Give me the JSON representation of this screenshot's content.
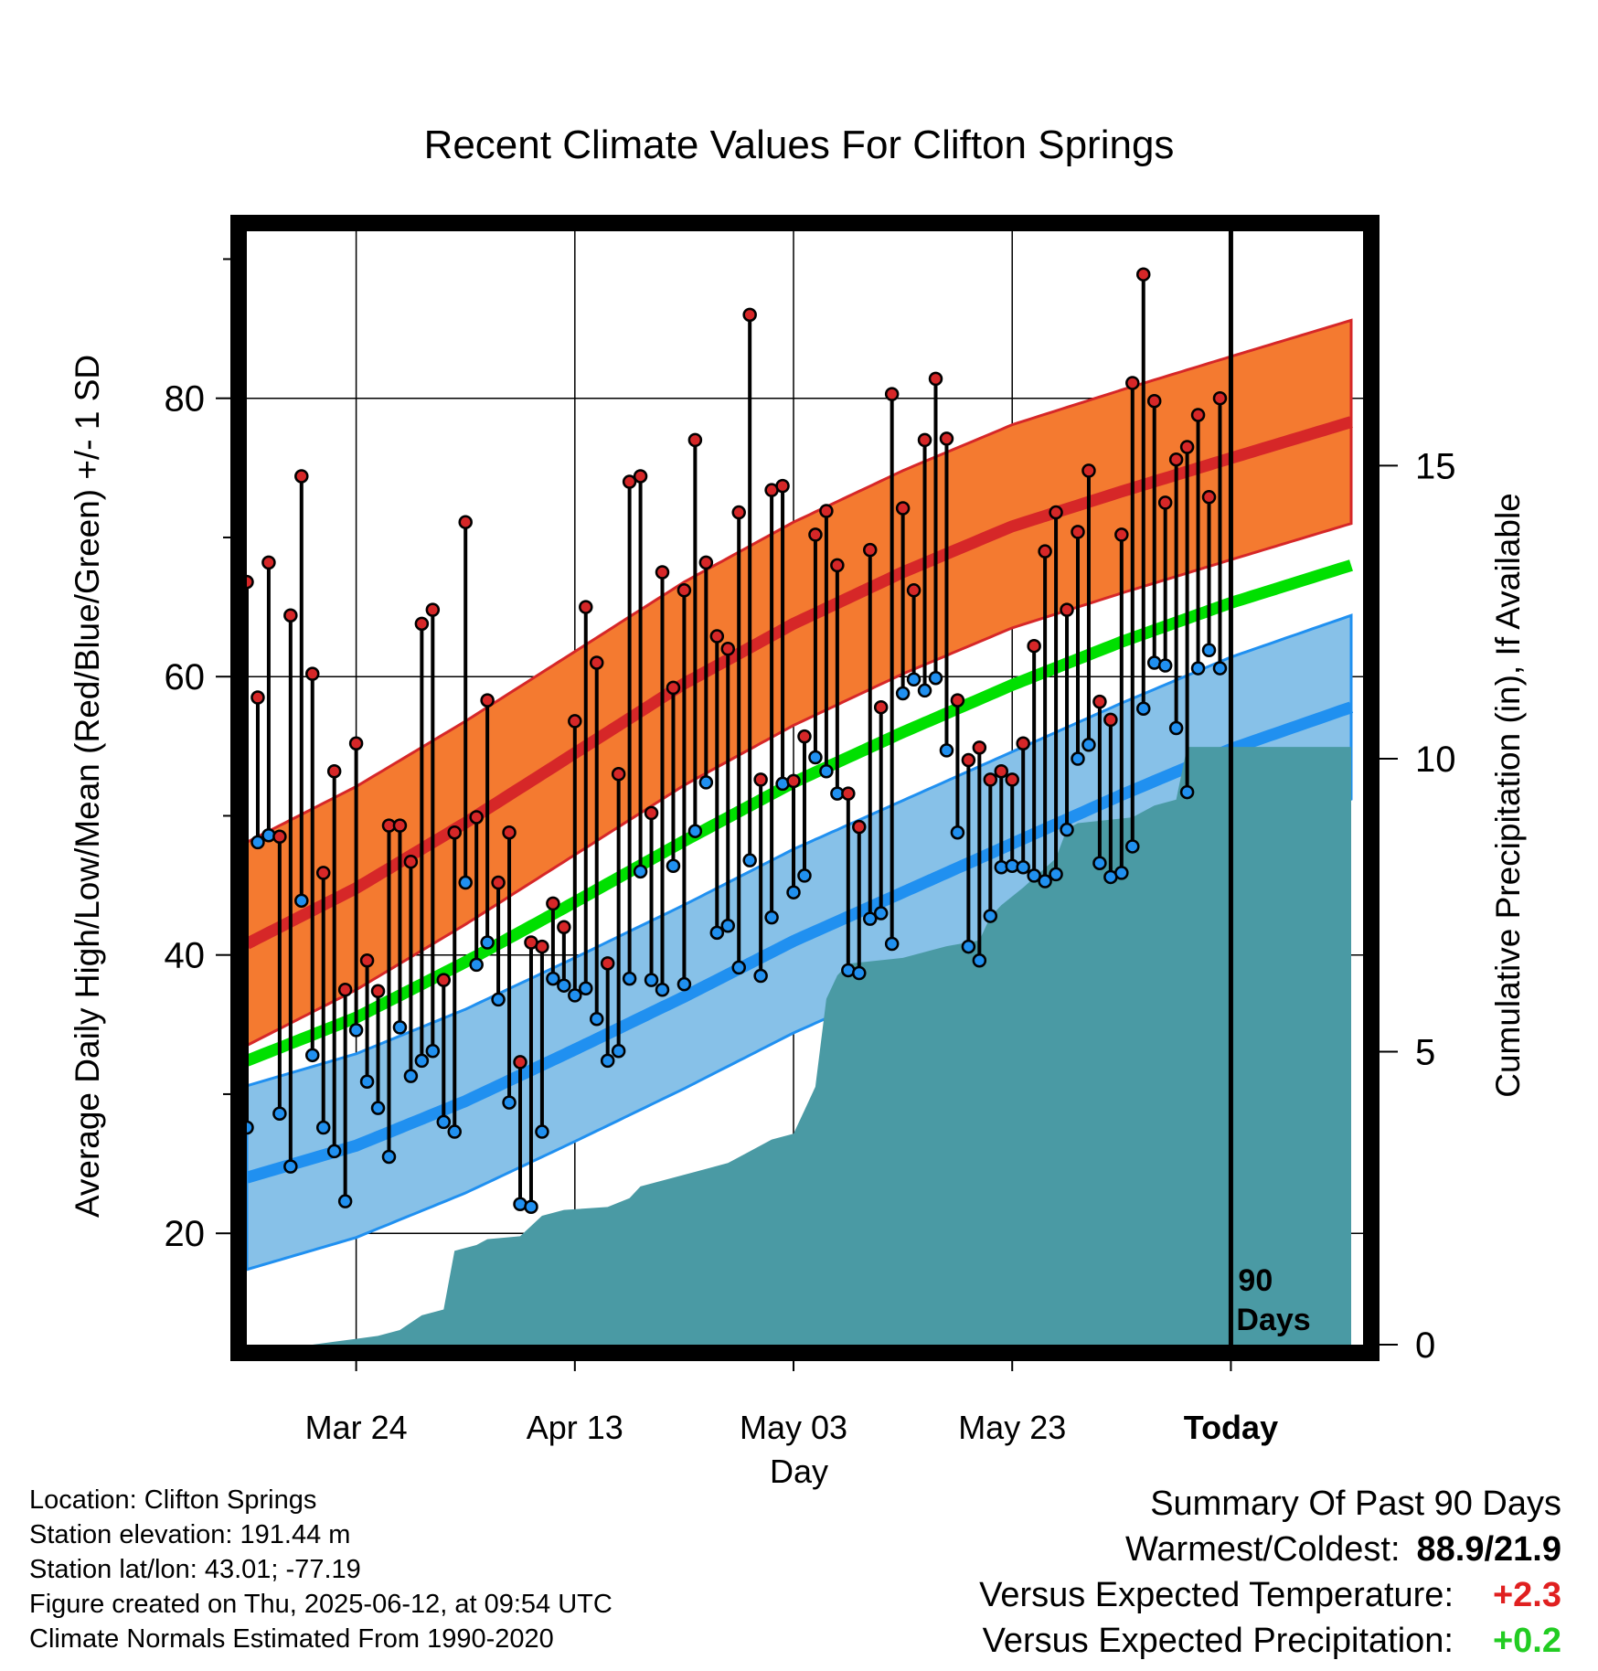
{
  "title": "Recent Climate Values For Clifton Springs",
  "xlabel": "Day",
  "ylabel_left": "Average Daily High/Low/Mean (Red/Blue/Green) +/- 1 SD",
  "ylabel_right": "Cumulative Precipitation (in), If Available",
  "today_marker_label": [
    "90",
    "Days"
  ],
  "info": {
    "location": "Location: Clifton Springs",
    "elevation": "Station elevation: 191.44 m",
    "latlon": "Station lat/lon: 43.01; -77.19",
    "created": "Figure created on Thu, 2025-06-12, at 09:54 UTC",
    "normals": "Climate Normals Estimated From 1990-2020"
  },
  "summary": {
    "heading": "Summary Of Past 90 Days",
    "warm_cold_label": "Warmest/Coldest:",
    "warm_cold_value": "88.9/21.9",
    "temp_label": "Versus Expected Temperature:",
    "temp_value": "+2.3",
    "temp_color": "#e02020",
    "precip_label": "Versus Expected Precipitation:",
    "precip_value": "+0.2",
    "precip_color": "#22cc22"
  },
  "colors": {
    "high_band": "#f47a30",
    "high_line": "#d62728",
    "low_band": "#87c1e8",
    "low_line": "#2090f0",
    "mean_line": "#00e000",
    "precip_fill": "#4a9aa4",
    "high_dot": "#d62728",
    "low_dot": "#2090f0"
  },
  "chart_data": {
    "type": "line",
    "x_range": [
      0,
      101
    ],
    "x_ticks": [
      {
        "day": 10,
        "label": "Mar 24"
      },
      {
        "day": 30,
        "label": "Apr 13"
      },
      {
        "day": 50,
        "label": "May 03"
      },
      {
        "day": 70,
        "label": "May 23"
      },
      {
        "day": 90,
        "label": "Today"
      }
    ],
    "today_day": 90,
    "y_left": {
      "range": [
        12,
        92
      ],
      "ticks": [
        20,
        40,
        60,
        80
      ],
      "minor_ticks": [
        30,
        50,
        70,
        90
      ]
    },
    "y_right": {
      "range": [
        0,
        19
      ],
      "ticks": [
        0,
        5,
        10,
        15
      ]
    },
    "normal_high": {
      "knots": [
        [
          0,
          40.8
        ],
        [
          10,
          44.8
        ],
        [
          20,
          49.5
        ],
        [
          30,
          54.5
        ],
        [
          40,
          59.5
        ],
        [
          50,
          63.8
        ],
        [
          60,
          67.5
        ],
        [
          70,
          70.8
        ],
        [
          80,
          73.3
        ],
        [
          90,
          75.7
        ],
        [
          101,
          78.3
        ]
      ],
      "sd": 7.3
    },
    "normal_low": {
      "knots": [
        [
          0,
          24.0
        ],
        [
          10,
          26.3
        ],
        [
          20,
          29.5
        ],
        [
          30,
          33.2
        ],
        [
          40,
          37.0
        ],
        [
          50,
          41.0
        ],
        [
          60,
          44.5
        ],
        [
          70,
          48.0
        ],
        [
          80,
          51.5
        ],
        [
          90,
          54.8
        ],
        [
          101,
          57.8
        ]
      ],
      "sd": 6.6
    },
    "normal_mean": {
      "knots": [
        [
          0,
          32.4
        ],
        [
          10,
          35.5
        ],
        [
          20,
          39.5
        ],
        [
          30,
          43.8
        ],
        [
          40,
          48.2
        ],
        [
          50,
          52.4
        ],
        [
          60,
          56.0
        ],
        [
          70,
          59.4
        ],
        [
          80,
          62.5
        ],
        [
          90,
          65.3
        ],
        [
          101,
          68.0
        ]
      ]
    },
    "daily": {
      "start_day": 0,
      "high": [
        66.8,
        58.5,
        68.2,
        48.5,
        64.4,
        74.4,
        60.2,
        45.9,
        53.2,
        37.5,
        55.2,
        39.6,
        37.4,
        49.3,
        49.3,
        46.7,
        63.8,
        64.8,
        38.2,
        48.8,
        71.1,
        49.9,
        58.3,
        45.2,
        48.8,
        32.3,
        40.9,
        40.6,
        43.7,
        42.0,
        56.8,
        65.0,
        61.0,
        39.4,
        53.0,
        74.0,
        74.4,
        50.2,
        67.5,
        59.2,
        66.2,
        77.0,
        68.2,
        62.9,
        62.0,
        71.8,
        86.0,
        52.6,
        73.4,
        73.7,
        52.5,
        55.7,
        70.2,
        71.9,
        68.0,
        51.6,
        49.2,
        69.1,
        57.8,
        80.3,
        72.1,
        66.2,
        77.0,
        81.4,
        77.1,
        58.3,
        54.0,
        54.9,
        52.6,
        53.2,
        52.6,
        55.2,
        62.2,
        69.0,
        71.8,
        64.8,
        70.4,
        74.8,
        58.2,
        56.9,
        70.2,
        81.1,
        88.9,
        79.8,
        72.5,
        75.6,
        76.5,
        78.8,
        72.9,
        80.0
      ],
      "low": [
        27.6,
        48.1,
        48.6,
        28.6,
        24.8,
        43.9,
        32.8,
        27.6,
        25.9,
        22.3,
        34.6,
        30.9,
        29.0,
        25.5,
        34.8,
        31.3,
        32.4,
        33.1,
        28.0,
        27.3,
        45.2,
        39.3,
        40.9,
        36.8,
        29.4,
        22.1,
        21.9,
        27.3,
        38.3,
        37.8,
        37.1,
        37.6,
        35.4,
        32.4,
        33.1,
        38.3,
        46.0,
        38.2,
        37.5,
        46.4,
        37.9,
        48.9,
        52.4,
        41.6,
        42.1,
        39.1,
        46.8,
        38.5,
        42.7,
        52.3,
        44.5,
        45.7,
        54.2,
        53.2,
        51.6,
        38.9,
        38.7,
        42.6,
        43.0,
        40.8,
        58.8,
        59.8,
        59.0,
        59.9,
        54.7,
        48.8,
        40.6,
        39.6,
        42.8,
        46.3,
        46.4,
        46.3,
        45.7,
        45.3,
        45.8,
        49.0,
        54.1,
        55.1,
        46.6,
        45.6,
        45.9,
        47.8,
        57.7,
        61.0,
        60.8,
        56.3,
        51.7,
        60.6,
        61.9,
        60.6
      ]
    },
    "cumulative_precip": [
      [
        0,
        0
      ],
      [
        6,
        0
      ],
      [
        8,
        0.05
      ],
      [
        10,
        0.1
      ],
      [
        12,
        0.15
      ],
      [
        14,
        0.25
      ],
      [
        16,
        0.5
      ],
      [
        18,
        0.6
      ],
      [
        19,
        1.6
      ],
      [
        21,
        1.7
      ],
      [
        22,
        1.8
      ],
      [
        25,
        1.85
      ],
      [
        27,
        2.2
      ],
      [
        29,
        2.3
      ],
      [
        33,
        2.35
      ],
      [
        35,
        2.5
      ],
      [
        36,
        2.7
      ],
      [
        38,
        2.8
      ],
      [
        40,
        2.9
      ],
      [
        42,
        3.0
      ],
      [
        44,
        3.1
      ],
      [
        46,
        3.3
      ],
      [
        48,
        3.5
      ],
      [
        50,
        3.6
      ],
      [
        51,
        4.0
      ],
      [
        52,
        4.4
      ],
      [
        53,
        5.9
      ],
      [
        54,
        6.3
      ],
      [
        55,
        6.5
      ],
      [
        60,
        6.6
      ],
      [
        62,
        6.7
      ],
      [
        64,
        6.8
      ],
      [
        67,
        6.9
      ],
      [
        68,
        7.3
      ],
      [
        69,
        7.5
      ],
      [
        71,
        7.8
      ],
      [
        74,
        8.3
      ],
      [
        75,
        8.8
      ],
      [
        76,
        8.9
      ],
      [
        81,
        9.0
      ],
      [
        83,
        9.2
      ],
      [
        85,
        9.3
      ],
      [
        86,
        10.2
      ],
      [
        90,
        10.2
      ],
      [
        101,
        10.2
      ]
    ]
  }
}
